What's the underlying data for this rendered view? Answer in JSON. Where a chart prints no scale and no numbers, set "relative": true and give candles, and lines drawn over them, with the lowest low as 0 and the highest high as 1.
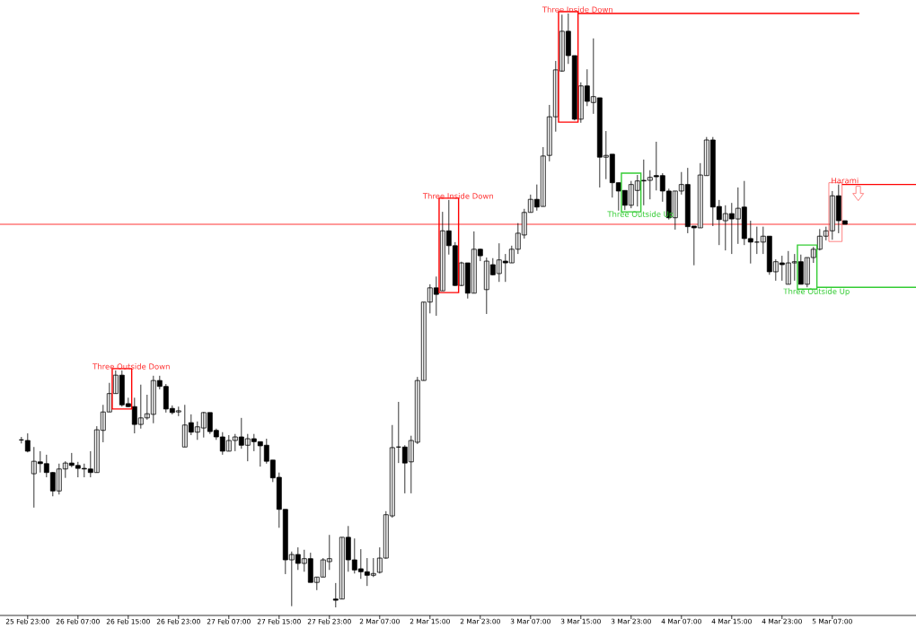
{
  "chart_data": {
    "type": "candlestick",
    "relative": true,
    "categories": [
      null,
      "25 Feb 23:00",
      null,
      null,
      null,
      null,
      null,
      null,
      null,
      "26 Feb 07:00",
      null,
      null,
      null,
      null,
      null,
      null,
      null,
      "26 Feb 15:00",
      null,
      null,
      null,
      null,
      null,
      null,
      null,
      "26 Feb 23:00",
      null,
      null,
      null,
      null,
      null,
      null,
      null,
      "27 Feb 07:00",
      null,
      null,
      null,
      null,
      null,
      null,
      null,
      "27 Feb 15:00",
      null,
      null,
      null,
      null,
      null,
      null,
      null,
      "27 Feb 23:00",
      null,
      null,
      null,
      null,
      null,
      null,
      null,
      "2 Mar 07:00",
      null,
      null,
      null,
      null,
      null,
      null,
      null,
      "2 Mar 15:00",
      null,
      null,
      null,
      null,
      null,
      null,
      null,
      "2 Mar 23:00",
      null,
      null,
      null,
      null,
      null,
      null,
      null,
      "3 Mar 07:00",
      null,
      null,
      null,
      null,
      null,
      null,
      null,
      "3 Mar 15:00",
      null,
      null,
      null,
      null,
      null,
      null,
      null,
      "3 Mar 23:00",
      null,
      null,
      null,
      null,
      null,
      null,
      null,
      "4 Mar 07:00",
      null,
      null,
      null,
      null,
      null,
      null,
      null,
      "4 Mar 15:00",
      null,
      null,
      null,
      null,
      null,
      null,
      null,
      "4 Mar 23:00",
      null,
      null,
      null,
      null,
      null,
      null,
      null,
      "5 Mar 07:00",
      null,
      null
    ],
    "ohlc": [
      [
        0.282,
        0.287,
        0.276,
        0.282
      ],
      [
        0.281,
        0.293,
        0.261,
        0.263
      ],
      [
        0.225,
        0.27,
        0.168,
        0.246
      ],
      [
        0.245,
        0.263,
        0.227,
        0.242
      ],
      [
        0.242,
        0.257,
        0.219,
        0.227
      ],
      [
        0.227,
        0.228,
        0.187,
        0.196
      ],
      [
        0.196,
        0.242,
        0.19,
        0.233
      ],
      [
        0.233,
        0.246,
        0.218,
        0.243
      ],
      [
        0.243,
        0.26,
        0.236,
        0.239
      ],
      [
        0.239,
        0.245,
        0.219,
        0.234
      ],
      [
        0.234,
        0.242,
        0.219,
        0.233
      ],
      [
        0.233,
        0.263,
        0.219,
        0.227
      ],
      [
        0.227,
        0.305,
        0.227,
        0.299
      ],
      [
        0.298,
        0.341,
        0.278,
        0.329
      ],
      [
        0.329,
        0.378,
        0.329,
        0.36
      ],
      [
        0.36,
        0.399,
        0.36,
        0.391
      ],
      [
        0.391,
        0.399,
        0.338,
        0.341
      ],
      [
        0.343,
        0.353,
        0.337,
        0.338
      ],
      [
        0.338,
        0.353,
        0.293,
        0.308
      ],
      [
        0.308,
        0.375,
        0.301,
        0.319
      ],
      [
        0.319,
        0.358,
        0.316,
        0.326
      ],
      [
        0.325,
        0.39,
        0.31,
        0.382
      ],
      [
        0.382,
        0.39,
        0.367,
        0.372
      ],
      [
        0.372,
        0.376,
        0.328,
        0.334
      ],
      [
        0.335,
        0.34,
        0.325,
        0.328
      ],
      [
        0.329,
        0.338,
        0.322,
        0.331
      ],
      [
        0.27,
        0.341,
        0.27,
        0.307
      ],
      [
        0.311,
        0.325,
        0.29,
        0.295
      ],
      [
        0.295,
        0.313,
        0.282,
        0.304
      ],
      [
        0.302,
        0.329,
        0.286,
        0.328
      ],
      [
        0.328,
        0.328,
        0.292,
        0.296
      ],
      [
        0.298,
        0.301,
        0.282,
        0.287
      ],
      [
        0.287,
        0.295,
        0.257,
        0.263
      ],
      [
        0.263,
        0.29,
        0.263,
        0.281
      ],
      [
        0.281,
        0.292,
        0.263,
        0.287
      ],
      [
        0.287,
        0.319,
        0.267,
        0.273
      ],
      [
        0.273,
        0.292,
        0.246,
        0.284
      ],
      [
        0.284,
        0.292,
        0.263,
        0.279
      ],
      [
        0.279,
        0.279,
        0.237,
        0.272
      ],
      [
        0.273,
        0.284,
        0.242,
        0.246
      ],
      [
        0.248,
        0.248,
        0.211,
        0.218
      ],
      [
        0.219,
        0.227,
        0.134,
        0.165
      ],
      [
        0.165,
        0.165,
        0.056,
        0.08
      ],
      [
        0.08,
        0.094,
        0.002,
        0.089
      ],
      [
        0.089,
        0.101,
        0.063,
        0.074
      ],
      [
        0.074,
        0.097,
        0.06,
        0.082
      ],
      [
        0.082,
        0.092,
        0.042,
        0.042
      ],
      [
        0.042,
        0.051,
        0.029,
        0.051
      ],
      [
        0.051,
        0.083,
        0.051,
        0.08
      ],
      [
        0.077,
        0.122,
        0.063,
        0.082
      ],
      [
        0.014,
        0.041,
        0,
        0.012
      ],
      [
        0.014,
        0.118,
        0.014,
        0.118
      ],
      [
        0.118,
        0.137,
        0.06,
        0.08
      ],
      [
        0.08,
        0.116,
        0.057,
        0.063
      ],
      [
        0.065,
        0.098,
        0.048,
        0.06
      ],
      [
        0.06,
        0.083,
        0.036,
        0.054
      ],
      [
        0.054,
        0.083,
        0.051,
        0.057
      ],
      [
        0.059,
        0.101,
        0.057,
        0.083
      ],
      [
        0.083,
        0.162,
        0.082,
        0.156
      ],
      [
        0.154,
        0.307,
        0.151,
        0.269
      ],
      [
        0.27,
        0.346,
        0.243,
        0.27
      ],
      [
        0.27,
        0.273,
        0.192,
        0.243
      ],
      [
        0.245,
        0.289,
        0.192,
        0.281
      ],
      [
        0.278,
        0.388,
        0.275,
        0.382
      ],
      [
        0.382,
        0.514,
        0.382,
        0.514
      ],
      [
        0.514,
        0.544,
        0.495,
        0.538
      ],
      [
        0.538,
        0.557,
        0.491,
        0.527
      ],
      [
        0.533,
        0.666,
        0.533,
        0.634
      ],
      [
        0.634,
        0.686,
        0.594,
        0.609
      ],
      [
        0.609,
        0.615,
        0.541,
        0.542
      ],
      [
        0.542,
        0.582,
        0.541,
        0.58
      ],
      [
        0.58,
        0.58,
        0.52,
        0.529
      ],
      [
        0.529,
        0.633,
        0.529,
        0.603
      ],
      [
        0.603,
        0.604,
        0.583,
        0.592
      ],
      [
        0.535,
        0.589,
        0.494,
        0.583
      ],
      [
        0.577,
        0.588,
        0.559,
        0.56
      ],
      [
        0.562,
        0.613,
        0.548,
        0.585
      ],
      [
        0.583,
        0.595,
        0.548,
        0.58
      ],
      [
        0.58,
        0.609,
        0.58,
        0.603
      ],
      [
        0.603,
        0.647,
        0.595,
        0.63
      ],
      [
        0.627,
        0.671,
        0.621,
        0.665
      ],
      [
        0.665,
        0.695,
        0.665,
        0.687
      ],
      [
        0.687,
        0.712,
        0.668,
        0.674
      ],
      [
        0.675,
        0.775,
        0.675,
        0.76
      ],
      [
        0.761,
        0.846,
        0.751,
        0.826
      ],
      [
        0.826,
        0.92,
        0.801,
        0.905
      ],
      [
        0.903,
        0.998,
        0.902,
        0.97
      ],
      [
        0.97,
        1,
        0.915,
        0.929
      ],
      [
        0.929,
        0.929,
        0.82,
        0.822
      ],
      [
        0.822,
        0.884,
        0.816,
        0.878
      ],
      [
        0.878,
        0.906,
        0.844,
        0.852
      ],
      [
        0.85,
        0.958,
        0.831,
        0.86
      ],
      [
        0.858,
        0.858,
        0.707,
        0.758
      ],
      [
        0.758,
        0.802,
        0.721,
        0.761
      ],
      [
        0.763,
        0.763,
        0.69,
        0.715
      ],
      [
        0.715,
        0.715,
        0.668,
        0.701
      ],
      [
        0.702,
        0.702,
        0.669,
        0.677
      ],
      [
        0.677,
        0.718,
        0.672,
        0.712
      ],
      [
        0.702,
        0.728,
        0.675,
        0.718
      ],
      [
        0.719,
        0.754,
        0.677,
        0.718
      ],
      [
        0.719,
        0.736,
        0.687,
        0.724
      ],
      [
        0.727,
        0.784,
        0.702,
        0.725
      ],
      [
        0.727,
        0.731,
        0.683,
        0.701
      ],
      [
        0.701,
        0.705,
        0.653,
        0.656
      ],
      [
        0.656,
        0.701,
        0.636,
        0.701
      ],
      [
        0.701,
        0.733,
        0.695,
        0.712
      ],
      [
        0.712,
        0.74,
        0.63,
        0.641
      ],
      [
        0.642,
        0.642,
        0.576,
        0.639
      ],
      [
        0.639,
        0.748,
        0.639,
        0.728
      ],
      [
        0.727,
        0.792,
        0.727,
        0.787
      ],
      [
        0.787,
        0.792,
        0.642,
        0.674
      ],
      [
        0.675,
        0.686,
        0.61,
        0.653
      ],
      [
        0.651,
        0.677,
        0.601,
        0.663
      ],
      [
        0.663,
        0.681,
        0.595,
        0.654
      ],
      [
        0.654,
        0.707,
        0.612,
        0.672
      ],
      [
        0.674,
        0.718,
        0.61,
        0.621
      ],
      [
        0.621,
        0.651,
        0.579,
        0.615
      ],
      [
        0.615,
        0.641,
        0.595,
        0.615
      ],
      [
        0.615,
        0.641,
        0.595,
        0.625
      ],
      [
        0.625,
        0.625,
        0.56,
        0.565
      ],
      [
        0.565,
        0.586,
        0.55,
        0.582
      ],
      [
        0.58,
        0.592,
        0.55,
        0.577
      ],
      [
        0.544,
        0.6,
        0.544,
        0.58
      ],
      [
        0.58,
        0.595,
        0.55,
        0.582
      ],
      [
        0.582,
        0.594,
        0.544,
        0.544
      ],
      [
        0.544,
        0.589,
        0.539,
        0.589
      ],
      [
        0.589,
        0.607,
        0.58,
        0.603
      ],
      [
        0.603,
        0.637,
        0.601,
        0.625
      ],
      [
        0.625,
        0.641,
        0.618,
        0.634
      ],
      [
        0.634,
        0.701,
        0.619,
        0.693
      ],
      [
        0.693,
        0.712,
        0.63,
        0.651
      ],
      [
        0.651,
        0.651,
        0.645,
        0.645
      ]
    ],
    "ref_lines": [
      {
        "axis": "y",
        "value": 0.645,
        "color": "#ff0000"
      }
    ],
    "annotations": [
      "Three Outside Down",
      "Three Inside Down",
      "Three Inside Down",
      "Three Outside Up",
      "Three Outside Up",
      "Harami"
    ]
  }
}
